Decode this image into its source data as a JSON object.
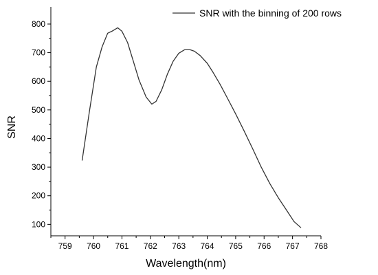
{
  "chart_data": {
    "type": "line",
    "title": "",
    "xlabel": "Wavelength(nm)",
    "ylabel": "SNR",
    "xlim": [
      758.5,
      768
    ],
    "ylim": [
      60,
      860
    ],
    "x_ticks": [
      759,
      760,
      761,
      762,
      763,
      764,
      765,
      766,
      767,
      768
    ],
    "x_tick_labels": [
      "759",
      "760",
      "761",
      "762",
      "763",
      "764",
      "765",
      "766",
      "767",
      "768"
    ],
    "y_ticks": [
      100,
      200,
      300,
      400,
      500,
      600,
      700,
      800
    ],
    "y_tick_labels": [
      "100",
      "200",
      "300",
      "400",
      "500",
      "600",
      "700",
      "800"
    ],
    "grid": false,
    "legend_position": "top-right",
    "line_color": "#333333",
    "series": [
      {
        "name": "SNR with the binning of 200 rows",
        "x": [
          759.6,
          759.85,
          760.1,
          760.3,
          760.5,
          760.65,
          760.85,
          761.0,
          761.2,
          761.4,
          761.6,
          761.85,
          762.05,
          762.2,
          762.4,
          762.6,
          762.8,
          763.0,
          763.2,
          763.4,
          763.55,
          763.75,
          764.0,
          764.2,
          764.45,
          764.7,
          765.0,
          765.3,
          765.6,
          765.9,
          766.2,
          766.5,
          766.8,
          767.05,
          767.3
        ],
        "y": [
          323,
          490,
          650,
          720,
          768,
          775,
          787,
          775,
          735,
          670,
          605,
          545,
          520,
          530,
          570,
          625,
          670,
          698,
          710,
          710,
          705,
          690,
          663,
          632,
          590,
          543,
          486,
          426,
          364,
          300,
          243,
          193,
          148,
          110,
          88
        ]
      }
    ]
  }
}
